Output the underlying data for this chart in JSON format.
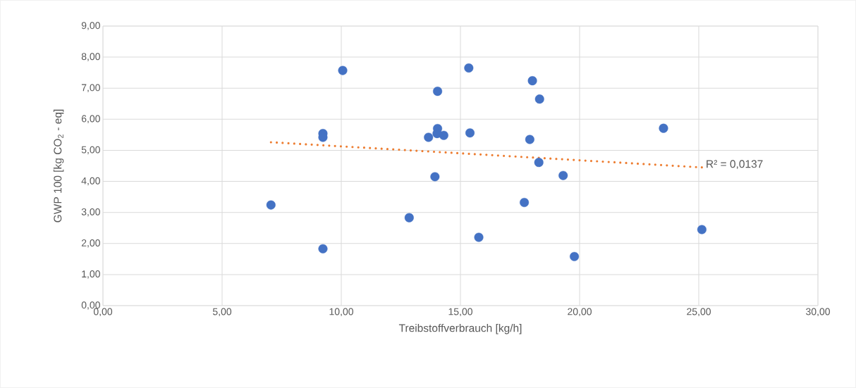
{
  "chart_data": {
    "type": "scatter",
    "xlabel": "Treibstoffverbrauch [kg/h]",
    "ylabel": "GWP 100 [kg CO$_{2}$ - eq]",
    "xlim": [
      0,
      30
    ],
    "ylim": [
      0,
      9
    ],
    "xticks": [
      {
        "value": 0,
        "label": "0,00"
      },
      {
        "value": 5,
        "label": "5,00"
      },
      {
        "value": 10,
        "label": "10,00"
      },
      {
        "value": 15,
        "label": "15,00"
      },
      {
        "value": 20,
        "label": "20,00"
      },
      {
        "value": 25,
        "label": "25,00"
      },
      {
        "value": 30,
        "label": "30,00"
      }
    ],
    "yticks": [
      {
        "value": 0,
        "label": "0,00"
      },
      {
        "value": 1,
        "label": "1,00"
      },
      {
        "value": 2,
        "label": "2,00"
      },
      {
        "value": 3,
        "label": "3,00"
      },
      {
        "value": 4,
        "label": "4,00"
      },
      {
        "value": 5,
        "label": "5,00"
      },
      {
        "value": 6,
        "label": "6,00"
      },
      {
        "value": 7,
        "label": "7,00"
      },
      {
        "value": 8,
        "label": "8,00"
      },
      {
        "value": 9,
        "label": "9,00"
      }
    ],
    "grid": true,
    "marker": "circle",
    "series": [
      {
        "color": "#4472c4",
        "x": [
          7.05,
          9.23,
          9.23,
          9.23,
          10.06,
          12.85,
          13.66,
          13.93,
          14.04,
          14.04,
          14.02,
          14.3,
          15.35,
          15.4,
          15.77,
          17.68,
          17.91,
          18.02,
          18.32,
          18.29,
          19.31,
          19.78,
          23.52,
          25.13
        ],
        "values": [
          3.24,
          1.83,
          5.54,
          5.42,
          7.57,
          2.83,
          5.42,
          4.15,
          6.9,
          5.7,
          5.54,
          5.48,
          7.65,
          5.56,
          2.2,
          3.32,
          5.35,
          7.24,
          6.65,
          4.61,
          4.19,
          1.58,
          5.71,
          2.45
        ]
      },
      {
        "type": "line",
        "color": "#ed7d31",
        "line_style": "dotted",
        "marker": "none",
        "x": [
          7.05,
          25.13
        ],
        "values": [
          5.26,
          4.45
        ]
      }
    ],
    "annotations": [
      {
        "text": "R² = 0,0137",
        "x": 25.13,
        "y": 4.45
      }
    ]
  }
}
